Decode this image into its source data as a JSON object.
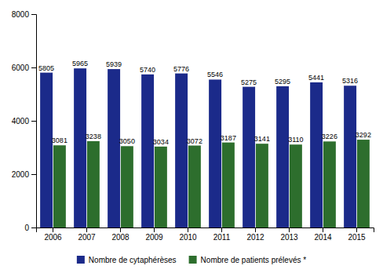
{
  "chart_data": {
    "type": "bar",
    "categories": [
      "2006",
      "2007",
      "2008",
      "2009",
      "2010",
      "2011",
      "2012",
      "2013",
      "2014",
      "2015"
    ],
    "series": [
      {
        "name": "Nombre de cytaphérèses",
        "color": "#1B2A8A",
        "values": [
          5805,
          5965,
          5939,
          5740,
          5776,
          5546,
          5275,
          5295,
          5441,
          5316
        ]
      },
      {
        "name": "Nombre de patients prélevés *",
        "color": "#2D6E2D",
        "values": [
          3081,
          3238,
          3050,
          3034,
          3072,
          3187,
          3141,
          3110,
          3226,
          3292
        ]
      }
    ],
    "ylim": [
      0,
      8000
    ],
    "yticks": [
      0,
      2000,
      4000,
      6000,
      8000
    ],
    "grid": false,
    "legend": "bottom",
    "data_labels": true
  }
}
